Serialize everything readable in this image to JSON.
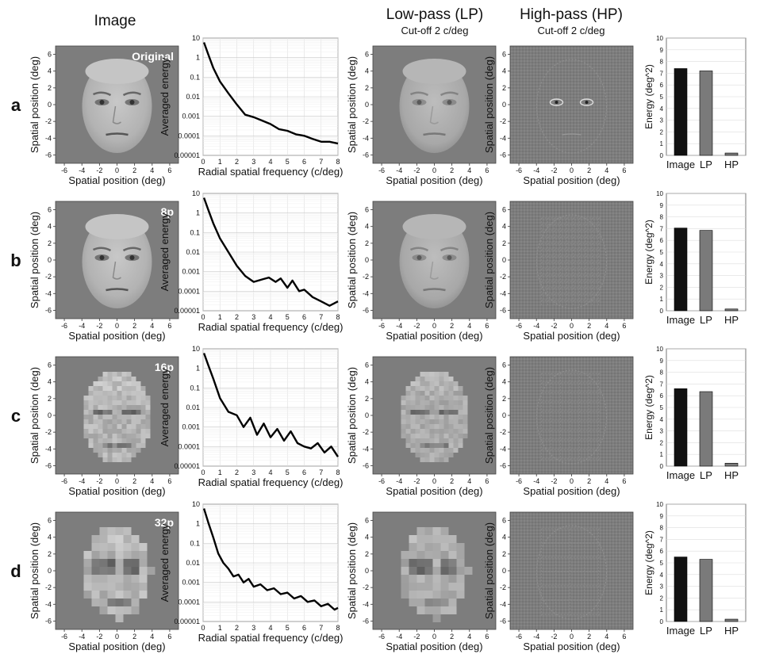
{
  "headers": {
    "image": "Image",
    "low_pass": "Low-pass (LP)",
    "low_pass_sub": "Cut-off 2 c/deg",
    "high_pass": "High-pass (HP)",
    "high_pass_sub": "Cut-off 2 c/deg"
  },
  "rows": [
    {
      "letter": "a",
      "image_label": "Original",
      "pixelation": 0
    },
    {
      "letter": "b",
      "image_label": "8p",
      "pixelation": 8
    },
    {
      "letter": "c",
      "image_label": "16p",
      "pixelation": 16
    },
    {
      "letter": "d",
      "image_label": "32p",
      "pixelation": 32
    }
  ],
  "image_axes": {
    "xlabel": "Spatial position (deg)",
    "ylabel": "Spatial position (deg)",
    "ticks": [
      -6,
      -4,
      -2,
      0,
      2,
      4,
      6
    ]
  },
  "colors": {
    "background_gray": "#7d7d7d",
    "face": "#b9b9b9",
    "curve": "#000000",
    "bar_image": "#111111",
    "bar_lp": "#7a7a7a",
    "bar_hp": "#7a7a7a"
  },
  "chart_data": [
    {
      "type": "line",
      "panel": "a",
      "xlabel": "Radial spatial frequency (c/deg)",
      "ylabel": "Averaged energy",
      "xlim": [
        0,
        8
      ],
      "ylim": [
        1e-05,
        10
      ],
      "yscale": "log",
      "grid": true,
      "xticks": [
        0,
        1,
        2,
        3,
        4,
        5,
        6,
        7,
        8
      ],
      "yticks": [
        "0.00001",
        "0.0001",
        "0.001",
        "0.01",
        "0.1",
        "1",
        "10"
      ],
      "x": [
        0.05,
        0.3,
        0.6,
        1.0,
        1.5,
        2.0,
        2.5,
        3.0,
        3.5,
        4.0,
        4.5,
        5.0,
        5.5,
        6.0,
        6.5,
        7.0,
        7.5,
        8.0
      ],
      "y": [
        6,
        1.5,
        0.3,
        0.06,
        0.015,
        0.004,
        0.0012,
        0.0009,
        0.0006,
        0.0004,
        0.00022,
        0.00018,
        0.00012,
        0.0001,
        7e-05,
        5e-05,
        5e-05,
        4e-05
      ]
    },
    {
      "type": "line",
      "panel": "b",
      "xlabel": "Radial spatial frequency (c/deg)",
      "ylabel": "Averaged energy",
      "xlim": [
        0,
        8
      ],
      "ylim": [
        1e-05,
        10
      ],
      "yscale": "log",
      "grid": true,
      "xticks": [
        0,
        1,
        2,
        3,
        4,
        5,
        6,
        7,
        8
      ],
      "yticks": [
        "0.00001",
        "0.0001",
        "0.001",
        "0.01",
        "0.1",
        "1",
        "10"
      ],
      "x": [
        0.05,
        0.3,
        0.6,
        1.0,
        1.5,
        2.0,
        2.5,
        3.0,
        3.5,
        3.9,
        4.3,
        4.6,
        5.0,
        5.3,
        5.7,
        6.0,
        6.5,
        7.0,
        7.5,
        8.0
      ],
      "y": [
        6,
        1.5,
        0.3,
        0.05,
        0.01,
        0.002,
        0.0006,
        0.0003,
        0.0004,
        0.0005,
        0.0003,
        0.00045,
        0.00015,
        0.00035,
        0.0001,
        0.00012,
        5e-05,
        3e-05,
        1.8e-05,
        3e-05
      ]
    },
    {
      "type": "line",
      "panel": "c",
      "xlabel": "Radial spatial frequency (c/deg)",
      "ylabel": "Averaged energy",
      "xlim": [
        0,
        8
      ],
      "ylim": [
        1e-05,
        10
      ],
      "yscale": "log",
      "grid": true,
      "xticks": [
        0,
        1,
        2,
        3,
        4,
        5,
        6,
        7,
        8
      ],
      "yticks": [
        "0.00001",
        "0.0001",
        "0.001",
        "0.01",
        "0.1",
        "1",
        "10"
      ],
      "x": [
        0.05,
        0.3,
        0.6,
        1.0,
        1.5,
        2.0,
        2.4,
        2.8,
        3.2,
        3.6,
        4.0,
        4.4,
        4.8,
        5.2,
        5.6,
        6.0,
        6.4,
        6.8,
        7.2,
        7.6,
        8.0
      ],
      "y": [
        6,
        1.5,
        0.3,
        0.03,
        0.006,
        0.004,
        0.001,
        0.003,
        0.0004,
        0.0015,
        0.0003,
        0.0008,
        0.0002,
        0.0006,
        0.00015,
        0.0001,
        8e-05,
        0.00015,
        5e-05,
        0.0001,
        3e-05
      ]
    },
    {
      "type": "line",
      "panel": "d",
      "xlabel": "Radial spatial frequency (c/deg)",
      "ylabel": "Averaged energy",
      "xlim": [
        0,
        8
      ],
      "ylim": [
        1e-05,
        10
      ],
      "yscale": "log",
      "grid": true,
      "xticks": [
        0,
        1,
        2,
        3,
        4,
        5,
        6,
        7,
        8
      ],
      "yticks": [
        "0.00001",
        "0.0001",
        "0.001",
        "0.01",
        "0.1",
        "1",
        "10"
      ],
      "x": [
        0.05,
        0.3,
        0.6,
        0.9,
        1.2,
        1.5,
        1.8,
        2.1,
        2.4,
        2.7,
        3.0,
        3.4,
        3.8,
        4.2,
        4.6,
        5.0,
        5.4,
        5.8,
        6.2,
        6.6,
        7.0,
        7.4,
        7.8,
        8.0
      ],
      "y": [
        6,
        1.2,
        0.2,
        0.03,
        0.01,
        0.005,
        0.002,
        0.0025,
        0.001,
        0.0015,
        0.0006,
        0.0008,
        0.0004,
        0.0005,
        0.00025,
        0.0003,
        0.00015,
        0.0002,
        0.0001,
        0.00012,
        6e-05,
        8e-05,
        4e-05,
        5e-05
      ]
    },
    {
      "type": "bar",
      "panel": "a",
      "categories": [
        "Image",
        "LP",
        "HP"
      ],
      "values": [
        7.4,
        7.2,
        0.2
      ],
      "ylabel": "Energy (deg^2)",
      "ylim": [
        0,
        10
      ],
      "yticks": [
        0,
        1,
        2,
        3,
        4,
        5,
        6,
        7,
        8,
        9,
        10
      ],
      "grid": true
    },
    {
      "type": "bar",
      "panel": "b",
      "categories": [
        "Image",
        "LP",
        "HP"
      ],
      "values": [
        7.05,
        6.85,
        0.15
      ],
      "ylabel": "Energy (deg^2)",
      "ylim": [
        0,
        10
      ],
      "yticks": [
        0,
        1,
        2,
        3,
        4,
        5,
        6,
        7,
        8,
        9,
        10
      ],
      "grid": true
    },
    {
      "type": "bar",
      "panel": "c",
      "categories": [
        "Image",
        "LP",
        "HP"
      ],
      "values": [
        6.6,
        6.35,
        0.25
      ],
      "ylabel": "Energy (deg^2)",
      "ylim": [
        0,
        10
      ],
      "yticks": [
        0,
        1,
        2,
        3,
        4,
        5,
        6,
        7,
        8,
        9,
        10
      ],
      "grid": true
    },
    {
      "type": "bar",
      "panel": "d",
      "categories": [
        "Image",
        "LP",
        "HP"
      ],
      "values": [
        5.5,
        5.3,
        0.2
      ],
      "ylabel": "Energy (deg^2)",
      "ylim": [
        0,
        10
      ],
      "yticks": [
        0,
        1,
        2,
        3,
        4,
        5,
        6,
        7,
        8,
        9,
        10
      ],
      "grid": true
    }
  ]
}
